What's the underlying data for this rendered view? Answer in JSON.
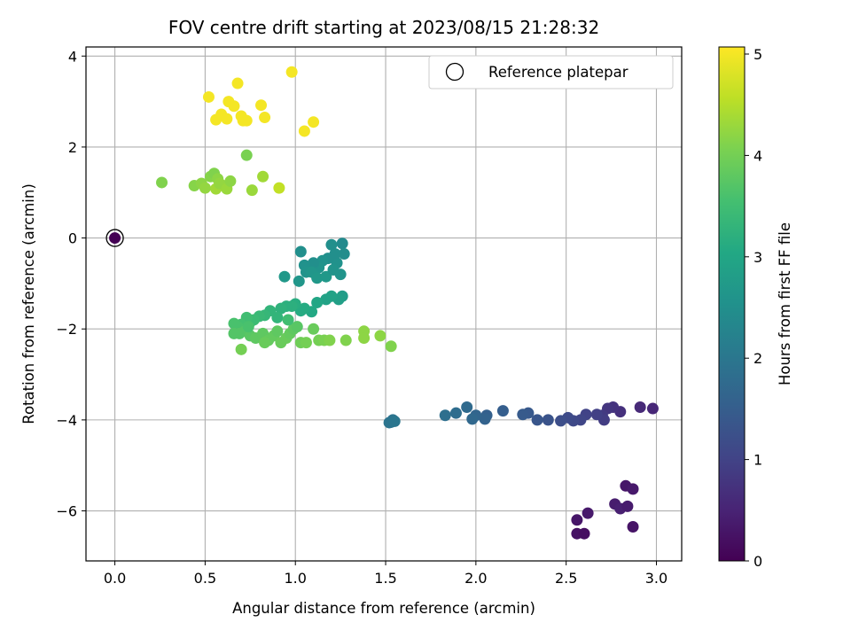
{
  "chart_data": {
    "type": "scatter",
    "title": "FOV centre drift starting at 2023/08/15 21:28:32",
    "xlabel": "Angular distance from reference (arcmin)",
    "ylabel": "Rotation from reference (arcmin)",
    "xlim": [
      -0.16,
      3.14
    ],
    "ylim": [
      -7.1,
      4.2
    ],
    "x_ticks": [
      0.0,
      0.5,
      1.0,
      1.5,
      2.0,
      2.5,
      3.0
    ],
    "x_tick_labels": [
      "0.0",
      "0.5",
      "1.0",
      "1.5",
      "2.0",
      "2.5",
      "3.0"
    ],
    "y_ticks": [
      -6,
      -4,
      -2,
      0,
      2,
      4
    ],
    "y_tick_labels": [
      "−6",
      "−4",
      "−2",
      "0",
      "2",
      "4"
    ],
    "grid": true,
    "legend": {
      "position": "top-right",
      "entries": [
        "Reference platepar"
      ]
    },
    "colorbar": {
      "label": "Hours from first FF file",
      "colormap": "viridis",
      "range": [
        0,
        5.07
      ],
      "ticks": [
        0,
        1,
        2,
        3,
        4,
        5
      ],
      "tick_labels": [
        "0",
        "1",
        "2",
        "3",
        "4",
        "5"
      ]
    },
    "reference_point": {
      "x": 0.0,
      "y": 0.0,
      "c": 0.0
    },
    "points": [
      {
        "x": 2.56,
        "y": -6.2,
        "c": 0.3
      },
      {
        "x": 2.56,
        "y": -6.5,
        "c": 0.25
      },
      {
        "x": 2.6,
        "y": -6.5,
        "c": 0.2
      },
      {
        "x": 2.62,
        "y": -6.05,
        "c": 0.35
      },
      {
        "x": 2.77,
        "y": -5.85,
        "c": 0.4
      },
      {
        "x": 2.8,
        "y": -5.95,
        "c": 0.45
      },
      {
        "x": 2.84,
        "y": -5.9,
        "c": 0.38
      },
      {
        "x": 2.83,
        "y": -5.45,
        "c": 0.3
      },
      {
        "x": 2.87,
        "y": -5.52,
        "c": 0.35
      },
      {
        "x": 2.87,
        "y": -6.35,
        "c": 0.28
      },
      {
        "x": 2.98,
        "y": -3.75,
        "c": 0.55
      },
      {
        "x": 2.91,
        "y": -3.72,
        "c": 0.6
      },
      {
        "x": 2.8,
        "y": -3.82,
        "c": 0.7
      },
      {
        "x": 2.76,
        "y": -3.72,
        "c": 0.75
      },
      {
        "x": 2.73,
        "y": -3.75,
        "c": 0.8
      },
      {
        "x": 2.7,
        "y": -3.9,
        "c": 0.85
      },
      {
        "x": 2.71,
        "y": -4.0,
        "c": 0.9
      },
      {
        "x": 2.67,
        "y": -3.88,
        "c": 0.95
      },
      {
        "x": 2.61,
        "y": -3.88,
        "c": 1.0
      },
      {
        "x": 2.58,
        "y": -4.0,
        "c": 1.05
      },
      {
        "x": 2.54,
        "y": -4.02,
        "c": 1.1
      },
      {
        "x": 2.51,
        "y": -3.95,
        "c": 1.15
      },
      {
        "x": 2.47,
        "y": -4.02,
        "c": 1.2
      },
      {
        "x": 2.4,
        "y": -4.0,
        "c": 1.3
      },
      {
        "x": 2.34,
        "y": -4.0,
        "c": 1.35
      },
      {
        "x": 2.29,
        "y": -3.85,
        "c": 1.4
      },
      {
        "x": 2.26,
        "y": -3.88,
        "c": 1.45
      },
      {
        "x": 2.15,
        "y": -3.8,
        "c": 1.5
      },
      {
        "x": 2.06,
        "y": -3.9,
        "c": 1.55
      },
      {
        "x": 2.05,
        "y": -3.98,
        "c": 1.6
      },
      {
        "x": 2.0,
        "y": -3.9,
        "c": 1.65
      },
      {
        "x": 1.98,
        "y": -3.98,
        "c": 1.7
      },
      {
        "x": 1.95,
        "y": -3.72,
        "c": 1.75
      },
      {
        "x": 1.89,
        "y": -3.85,
        "c": 1.8
      },
      {
        "x": 1.83,
        "y": -3.9,
        "c": 1.85
      },
      {
        "x": 1.53,
        "y": -4.05,
        "c": 1.9
      },
      {
        "x": 1.54,
        "y": -4.0,
        "c": 1.92
      },
      {
        "x": 1.52,
        "y": -4.06,
        "c": 1.95
      },
      {
        "x": 1.55,
        "y": -4.03,
        "c": 1.98
      },
      {
        "x": 1.26,
        "y": -0.12,
        "c": 2.4
      },
      {
        "x": 1.27,
        "y": -0.35,
        "c": 2.45
      },
      {
        "x": 1.2,
        "y": -0.15,
        "c": 2.5
      },
      {
        "x": 1.23,
        "y": -0.55,
        "c": 2.55
      },
      {
        "x": 1.25,
        "y": -0.8,
        "c": 2.6
      },
      {
        "x": 1.18,
        "y": -0.45,
        "c": 2.5
      },
      {
        "x": 1.15,
        "y": -0.5,
        "c": 2.55
      },
      {
        "x": 1.13,
        "y": -0.65,
        "c": 2.6
      },
      {
        "x": 1.1,
        "y": -0.55,
        "c": 2.5
      },
      {
        "x": 1.05,
        "y": -0.6,
        "c": 2.55
      },
      {
        "x": 1.03,
        "y": -0.3,
        "c": 2.5
      },
      {
        "x": 1.06,
        "y": -0.75,
        "c": 2.6
      },
      {
        "x": 1.09,
        "y": -0.75,
        "c": 2.65
      },
      {
        "x": 1.12,
        "y": -0.88,
        "c": 2.7
      },
      {
        "x": 1.17,
        "y": -0.85,
        "c": 2.7
      },
      {
        "x": 1.02,
        "y": -0.95,
        "c": 2.65
      },
      {
        "x": 0.94,
        "y": -0.85,
        "c": 2.7
      },
      {
        "x": 1.22,
        "y": -0.35,
        "c": 2.5
      },
      {
        "x": 1.21,
        "y": -0.7,
        "c": 2.6
      },
      {
        "x": 1.26,
        "y": -1.28,
        "c": 2.8
      },
      {
        "x": 1.24,
        "y": -1.35,
        "c": 2.85
      },
      {
        "x": 1.2,
        "y": -1.28,
        "c": 2.9
      },
      {
        "x": 1.17,
        "y": -1.35,
        "c": 2.9
      },
      {
        "x": 1.12,
        "y": -1.42,
        "c": 3.0
      },
      {
        "x": 1.09,
        "y": -1.62,
        "c": 3.05
      },
      {
        "x": 1.05,
        "y": -1.55,
        "c": 3.1
      },
      {
        "x": 1.03,
        "y": -1.6,
        "c": 3.1
      },
      {
        "x": 1.0,
        "y": -1.45,
        "c": 3.15
      },
      {
        "x": 0.98,
        "y": -1.5,
        "c": 3.2
      },
      {
        "x": 0.95,
        "y": -1.5,
        "c": 3.2
      },
      {
        "x": 0.92,
        "y": -1.55,
        "c": 3.25
      },
      {
        "x": 0.9,
        "y": -1.75,
        "c": 3.3
      },
      {
        "x": 0.86,
        "y": -1.6,
        "c": 3.3
      },
      {
        "x": 0.83,
        "y": -1.7,
        "c": 3.35
      },
      {
        "x": 0.8,
        "y": -1.72,
        "c": 3.4
      },
      {
        "x": 0.77,
        "y": -1.8,
        "c": 3.45
      },
      {
        "x": 0.75,
        "y": -1.85,
        "c": 3.45
      },
      {
        "x": 0.73,
        "y": -1.75,
        "c": 3.5
      },
      {
        "x": 0.7,
        "y": -1.9,
        "c": 3.55
      },
      {
        "x": 0.68,
        "y": -1.95,
        "c": 3.6
      },
      {
        "x": 0.66,
        "y": -1.88,
        "c": 3.6
      },
      {
        "x": 0.69,
        "y": -2.1,
        "c": 3.7
      },
      {
        "x": 0.72,
        "y": -2.05,
        "c": 3.7
      },
      {
        "x": 0.75,
        "y": -2.15,
        "c": 3.75
      },
      {
        "x": 0.78,
        "y": -2.2,
        "c": 3.8
      },
      {
        "x": 0.82,
        "y": -2.1,
        "c": 3.8
      },
      {
        "x": 0.85,
        "y": -2.25,
        "c": 3.85
      },
      {
        "x": 0.88,
        "y": -2.15,
        "c": 3.85
      },
      {
        "x": 0.9,
        "y": -2.05,
        "c": 3.8
      },
      {
        "x": 0.92,
        "y": -2.3,
        "c": 3.9
      },
      {
        "x": 0.95,
        "y": -2.2,
        "c": 3.9
      },
      {
        "x": 0.97,
        "y": -2.1,
        "c": 3.85
      },
      {
        "x": 0.99,
        "y": -2.0,
        "c": 3.8
      },
      {
        "x": 1.01,
        "y": -1.95,
        "c": 3.75
      },
      {
        "x": 1.03,
        "y": -2.3,
        "c": 3.95
      },
      {
        "x": 1.06,
        "y": -2.3,
        "c": 4.0
      },
      {
        "x": 1.1,
        "y": -2.0,
        "c": 3.9
      },
      {
        "x": 1.13,
        "y": -2.25,
        "c": 4.0
      },
      {
        "x": 1.16,
        "y": -2.25,
        "c": 4.05
      },
      {
        "x": 1.19,
        "y": -2.25,
        "c": 4.1
      },
      {
        "x": 1.28,
        "y": -2.25,
        "c": 4.1
      },
      {
        "x": 1.38,
        "y": -2.05,
        "c": 4.2
      },
      {
        "x": 1.38,
        "y": -2.2,
        "c": 4.2
      },
      {
        "x": 1.47,
        "y": -2.15,
        "c": 4.2
      },
      {
        "x": 1.53,
        "y": -2.38,
        "c": 4.1
      },
      {
        "x": 0.7,
        "y": -2.45,
        "c": 4.0
      },
      {
        "x": 0.83,
        "y": -2.3,
        "c": 3.9
      },
      {
        "x": 0.74,
        "y": -1.95,
        "c": 3.6
      },
      {
        "x": 0.96,
        "y": -1.8,
        "c": 3.5
      },
      {
        "x": 0.66,
        "y": -2.1,
        "c": 3.7
      },
      {
        "x": 0.26,
        "y": 1.22,
        "c": 4.1
      },
      {
        "x": 0.44,
        "y": 1.15,
        "c": 4.15
      },
      {
        "x": 0.48,
        "y": 1.2,
        "c": 4.2
      },
      {
        "x": 0.5,
        "y": 1.1,
        "c": 4.25
      },
      {
        "x": 0.53,
        "y": 1.35,
        "c": 4.15
      },
      {
        "x": 0.55,
        "y": 1.42,
        "c": 4.1
      },
      {
        "x": 0.57,
        "y": 1.3,
        "c": 4.2
      },
      {
        "x": 0.6,
        "y": 1.15,
        "c": 4.3
      },
      {
        "x": 0.56,
        "y": 1.08,
        "c": 4.35
      },
      {
        "x": 0.58,
        "y": 1.2,
        "c": 4.25
      },
      {
        "x": 0.62,
        "y": 1.08,
        "c": 4.3
      },
      {
        "x": 0.64,
        "y": 1.25,
        "c": 4.2
      },
      {
        "x": 0.73,
        "y": 1.82,
        "c": 4.05
      },
      {
        "x": 0.76,
        "y": 1.05,
        "c": 4.3
      },
      {
        "x": 0.82,
        "y": 1.35,
        "c": 4.35
      },
      {
        "x": 0.91,
        "y": 1.1,
        "c": 4.6
      },
      {
        "x": 0.52,
        "y": 3.1,
        "c": 5.0
      },
      {
        "x": 0.56,
        "y": 2.6,
        "c": 5.0
      },
      {
        "x": 0.59,
        "y": 2.72,
        "c": 5.0
      },
      {
        "x": 0.62,
        "y": 2.62,
        "c": 5.0
      },
      {
        "x": 0.63,
        "y": 3.0,
        "c": 5.0
      },
      {
        "x": 0.66,
        "y": 2.9,
        "c": 5.0
      },
      {
        "x": 0.68,
        "y": 3.4,
        "c": 5.0
      },
      {
        "x": 0.7,
        "y": 2.68,
        "c": 5.0
      },
      {
        "x": 0.71,
        "y": 2.58,
        "c": 5.0
      },
      {
        "x": 0.73,
        "y": 2.58,
        "c": 5.0
      },
      {
        "x": 0.81,
        "y": 2.92,
        "c": 5.0
      },
      {
        "x": 0.83,
        "y": 2.65,
        "c": 5.0
      },
      {
        "x": 0.98,
        "y": 3.65,
        "c": 5.0
      },
      {
        "x": 1.05,
        "y": 2.35,
        "c": 5.0
      },
      {
        "x": 1.1,
        "y": 2.55,
        "c": 5.0
      }
    ]
  }
}
